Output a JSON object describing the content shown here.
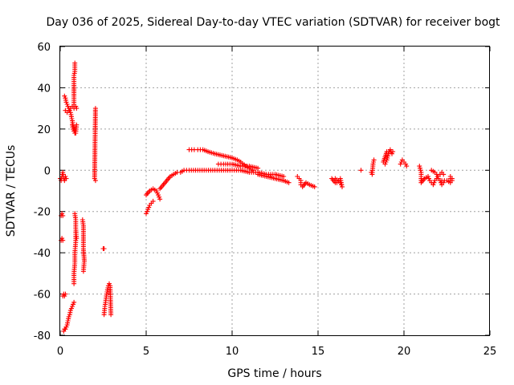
{
  "chart_data": {
    "type": "scatter",
    "title": "Day 036 of 2025, Sidereal Day-to-day VTEC variation (SDTVAR) for receiver bogt",
    "xlabel": "GPS time / hours",
    "ylabel": "SDTVAR / TECUs",
    "xlim": [
      0,
      25
    ],
    "ylim": [
      -80,
      60
    ],
    "xticks": [
      "0",
      "5",
      "10",
      "15",
      "20",
      "25"
    ],
    "yticks": [
      "-80",
      "-60",
      "-40",
      "-20",
      "0",
      "20",
      "40",
      "60"
    ],
    "grid": true,
    "marker": "plus",
    "color": "#ff0000",
    "series": [
      {
        "name": "SDTVAR",
        "segments": [
          [
            [
              0.0,
              -4
            ],
            [
              0.05,
              -5
            ],
            [
              0.1,
              -3
            ],
            [
              0.15,
              -1
            ],
            [
              0.2,
              -4
            ],
            [
              0.25,
              -5
            ],
            [
              0.3,
              -3
            ],
            [
              0.35,
              -4
            ]
          ],
          [
            [
              0.05,
              -22
            ],
            [
              0.1,
              -21
            ],
            [
              0.15,
              -22
            ]
          ],
          [
            [
              0.05,
              -34
            ],
            [
              0.1,
              -33
            ],
            [
              0.15,
              -34
            ]
          ],
          [
            [
              0.15,
              -61
            ],
            [
              0.2,
              -60
            ],
            [
              0.25,
              -61
            ],
            [
              0.3,
              -60
            ]
          ],
          [
            [
              0.2,
              -78
            ],
            [
              0.25,
              -77
            ],
            [
              0.3,
              -77
            ],
            [
              0.35,
              -76
            ],
            [
              0.4,
              -75
            ],
            [
              0.45,
              -73
            ],
            [
              0.5,
              -71
            ],
            [
              0.55,
              -70
            ],
            [
              0.6,
              -68
            ],
            [
              0.65,
              -67
            ],
            [
              0.7,
              -66
            ],
            [
              0.75,
              -65
            ],
            [
              0.8,
              -64
            ]
          ],
          [
            [
              0.25,
              36
            ],
            [
              0.3,
              35
            ],
            [
              0.35,
              33
            ],
            [
              0.4,
              32
            ],
            [
              0.45,
              31
            ],
            [
              0.5,
              30
            ],
            [
              0.55,
              29
            ],
            [
              0.6,
              28
            ],
            [
              0.65,
              26
            ],
            [
              0.7,
              24
            ],
            [
              0.75,
              22
            ],
            [
              0.8,
              20
            ],
            [
              0.85,
              18
            ]
          ],
          [
            [
              0.3,
              29
            ],
            [
              0.4,
              28
            ],
            [
              0.5,
              29
            ],
            [
              0.6,
              30
            ],
            [
              0.7,
              31
            ],
            [
              0.8,
              30
            ],
            [
              0.9,
              31
            ],
            [
              0.95,
              30
            ]
          ],
          [
            [
              0.7,
              22
            ],
            [
              0.75,
              20
            ],
            [
              0.8,
              19
            ],
            [
              0.85,
              21
            ],
            [
              0.9,
              18
            ],
            [
              0.95,
              22
            ]
          ],
          [
            [
              0.8,
              31
            ],
            [
              0.8,
              36
            ],
            [
              0.8,
              42
            ],
            [
              0.8,
              46
            ],
            [
              0.85,
              48
            ],
            [
              0.85,
              50
            ],
            [
              0.85,
              52
            ]
          ],
          [
            [
              0.8,
              -55
            ],
            [
              0.8,
              -50
            ],
            [
              0.85,
              -45
            ],
            [
              0.85,
              -40
            ],
            [
              0.9,
              -35
            ],
            [
              0.9,
              -30
            ]
          ],
          [
            [
              0.85,
              -21
            ],
            [
              0.9,
              -24
            ],
            [
              0.9,
              -28
            ],
            [
              0.95,
              -33
            ]
          ],
          [
            [
              1.3,
              -24
            ],
            [
              1.35,
              -27
            ],
            [
              1.35,
              -36
            ],
            [
              1.35,
              -38
            ],
            [
              1.4,
              -44
            ],
            [
              1.35,
              -49
            ]
          ],
          [
            [
              2.05,
              30
            ],
            [
              2.0,
              -4
            ],
            [
              2.05,
              -5
            ]
          ],
          [
            [
              2.5,
              -38
            ],
            [
              2.55,
              -38
            ]
          ],
          [
            [
              2.55,
              -70
            ],
            [
              2.6,
              -66
            ],
            [
              2.65,
              -63
            ],
            [
              2.7,
              -60
            ],
            [
              2.75,
              -58
            ],
            [
              2.8,
              -56
            ],
            [
              2.85,
              -55
            ],
            [
              2.9,
              -56
            ],
            [
              2.95,
              -70
            ]
          ],
          [
            [
              5.0,
              -21
            ],
            [
              5.1,
              -19
            ],
            [
              5.2,
              -17
            ],
            [
              5.3,
              -16
            ],
            [
              5.4,
              -15
            ]
          ],
          [
            [
              5.0,
              -12
            ],
            [
              5.2,
              -10
            ],
            [
              5.4,
              -9
            ],
            [
              5.6,
              -10
            ],
            [
              5.7,
              -12
            ],
            [
              5.8,
              -14
            ]
          ],
          [
            [
              5.8,
              -9
            ],
            [
              6.0,
              -7
            ],
            [
              6.2,
              -5
            ],
            [
              6.4,
              -3
            ],
            [
              6.6,
              -2
            ],
            [
              6.8,
              -1
            ],
            [
              7.0,
              -1
            ],
            [
              7.2,
              0
            ],
            [
              7.5,
              0
            ],
            [
              8.0,
              0
            ],
            [
              8.5,
              0
            ],
            [
              9.0,
              0
            ],
            [
              9.5,
              0
            ],
            [
              10.0,
              0
            ],
            [
              10.5,
              0
            ],
            [
              11.0,
              -1
            ],
            [
              11.5,
              -1
            ],
            [
              12.0,
              -2
            ],
            [
              12.5,
              -2
            ],
            [
              13.0,
              -3
            ]
          ],
          [
            [
              7.5,
              10
            ],
            [
              7.8,
              10
            ],
            [
              8.0,
              10
            ],
            [
              8.3,
              10
            ],
            [
              8.6,
              9
            ],
            [
              9.0,
              8
            ],
            [
              9.5,
              7
            ],
            [
              10.0,
              6
            ],
            [
              10.3,
              5
            ],
            [
              10.5,
              4
            ],
            [
              10.8,
              2
            ],
            [
              11.0,
              1
            ],
            [
              11.2,
              0
            ]
          ],
          [
            [
              9.2,
              3
            ],
            [
              9.5,
              3
            ],
            [
              10.0,
              3
            ],
            [
              10.5,
              2
            ],
            [
              11.0,
              2
            ],
            [
              11.5,
              1
            ]
          ],
          [
            [
              11.5,
              -2
            ],
            [
              12.0,
              -3
            ],
            [
              12.5,
              -4
            ],
            [
              13.0,
              -5
            ],
            [
              13.3,
              -6
            ]
          ],
          [
            [
              13.8,
              -3
            ],
            [
              13.9,
              -4
            ],
            [
              14.0,
              -5
            ],
            [
              14.0,
              -7
            ],
            [
              14.1,
              -8
            ],
            [
              14.3,
              -6
            ],
            [
              14.5,
              -7
            ],
            [
              14.8,
              -8
            ]
          ],
          [
            [
              15.8,
              -4
            ],
            [
              16.0,
              -6
            ],
            [
              16.1,
              -6
            ],
            [
              16.2,
              -5
            ],
            [
              16.3,
              -4
            ],
            [
              16.4,
              -8
            ],
            [
              16.3,
              -6
            ],
            [
              16.0,
              -4
            ]
          ],
          [
            [
              17.5,
              0
            ]
          ],
          [
            [
              18.1,
              -1
            ],
            [
              18.15,
              -2
            ],
            [
              18.2,
              3
            ],
            [
              18.25,
              5
            ]
          ],
          [
            [
              18.9,
              3
            ],
            [
              19.0,
              5
            ],
            [
              19.1,
              8
            ],
            [
              19.2,
              10
            ],
            [
              19.3,
              8
            ],
            [
              19.35,
              9
            ],
            [
              19.0,
              9
            ],
            [
              18.8,
              4
            ]
          ],
          [
            [
              19.8,
              3
            ],
            [
              19.9,
              5
            ],
            [
              20.0,
              4
            ],
            [
              20.1,
              3
            ],
            [
              20.15,
              2
            ]
          ],
          [
            [
              20.9,
              2
            ],
            [
              21.0,
              -1
            ],
            [
              21.0,
              -6
            ],
            [
              21.2,
              -4
            ],
            [
              21.4,
              -3
            ],
            [
              21.5,
              -5
            ],
            [
              21.6,
              -6
            ],
            [
              21.7,
              -7
            ],
            [
              21.8,
              -5
            ],
            [
              21.9,
              -4
            ],
            [
              22.0,
              -3
            ],
            [
              22.1,
              -2
            ],
            [
              22.2,
              -1
            ],
            [
              22.3,
              -2
            ]
          ],
          [
            [
              21.6,
              0
            ],
            [
              21.8,
              -1
            ],
            [
              21.9,
              -2
            ],
            [
              22.0,
              -4
            ],
            [
              22.1,
              -5
            ],
            [
              22.2,
              -7
            ],
            [
              22.3,
              -6
            ]
          ],
          [
            [
              22.2,
              -5
            ],
            [
              22.5,
              -5
            ],
            [
              22.7,
              -6
            ],
            [
              22.7,
              -3
            ],
            [
              22.8,
              -4
            ],
            [
              22.8,
              -5
            ]
          ]
        ]
      }
    ]
  }
}
